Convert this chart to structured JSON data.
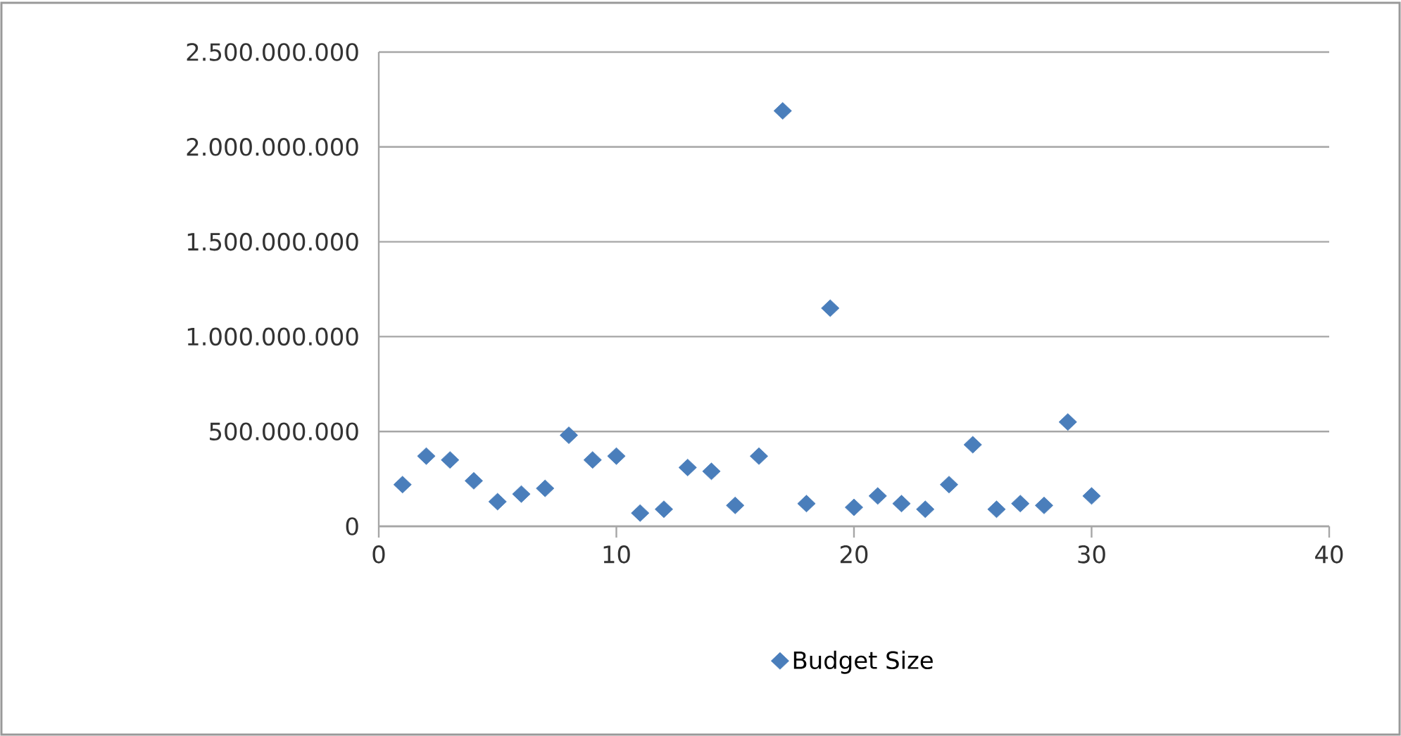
{
  "chart_data": {
    "type": "scatter",
    "x": [
      1,
      2,
      3,
      4,
      5,
      6,
      7,
      8,
      9,
      10,
      11,
      12,
      13,
      14,
      15,
      16,
      17,
      18,
      19,
      20,
      21,
      22,
      23,
      24,
      25,
      26,
      27,
      28,
      29,
      30
    ],
    "series": [
      {
        "name": "Budget Size",
        "color": "#4a7ebb",
        "values": [
          220000000,
          370000000,
          350000000,
          240000000,
          130000000,
          170000000,
          200000000,
          480000000,
          350000000,
          370000000,
          70000000,
          90000000,
          310000000,
          290000000,
          110000000,
          370000000,
          2190000000,
          120000000,
          1150000000,
          100000000,
          160000000,
          120000000,
          90000000,
          220000000,
          430000000,
          90000000,
          120000000,
          110000000,
          550000000,
          160000000
        ]
      }
    ],
    "xlim": [
      0,
      40
    ],
    "xticks": [
      0,
      10,
      20,
      30,
      40
    ],
    "ylim": [
      0,
      2500000000
    ],
    "yticks": [
      {
        "value": 0,
        "label": "0"
      },
      {
        "value": 500000000,
        "label": "500.000.000"
      },
      {
        "value": 1000000000,
        "label": "1.000.000.000"
      },
      {
        "value": 1500000000,
        "label": "1.500.000.000"
      },
      {
        "value": 2000000000,
        "label": "2.000.000.000"
      },
      {
        "value": 2500000000,
        "label": "2.500.000.000"
      }
    ],
    "grid": "y",
    "legend": "bottom",
    "marker": "diamond"
  }
}
